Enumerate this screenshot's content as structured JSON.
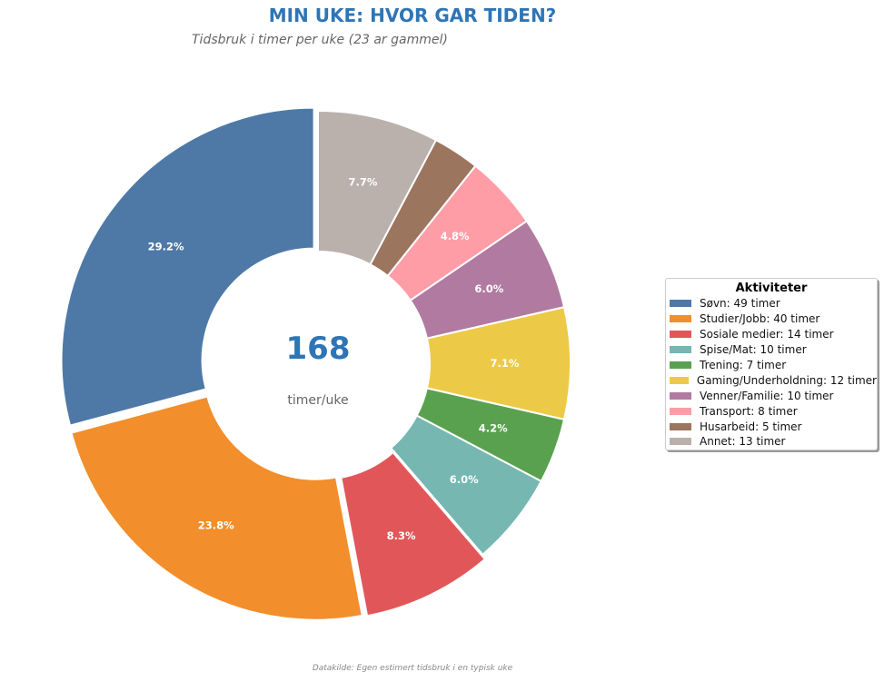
{
  "title": "MIN UKE: HVOR GAR TIDEN?",
  "subtitle": "Tidsbruk i timer per uke (23 ar gammel)",
  "center": {
    "value": "168",
    "label": "timer/uke"
  },
  "footer": "Datakilde: Egen estimert tidsbruk i en typisk uke",
  "legend": {
    "title": "Aktiviteter",
    "items": [
      {
        "label": "Søvn: 49 timer",
        "color": "#4e79a7"
      },
      {
        "label": "Studier/Jobb: 40 timer",
        "color": "#f28e2b"
      },
      {
        "label": "Sosiale medier: 14 timer",
        "color": "#e15759"
      },
      {
        "label": "Spise/Mat: 10 timer",
        "color": "#76b7b2"
      },
      {
        "label": "Trening: 7 timer",
        "color": "#59a14f"
      },
      {
        "label": "Gaming/Underholdning: 12 timer",
        "color": "#edc948"
      },
      {
        "label": "Venner/Familie: 10 timer",
        "color": "#b07aa1"
      },
      {
        "label": "Transport: 8 timer",
        "color": "#ff9da7"
      },
      {
        "label": "Husarbeid: 5 timer",
        "color": "#9c755f"
      },
      {
        "label": "Annet: 13 timer",
        "color": "#bab0ac"
      }
    ]
  },
  "chart_data": {
    "type": "pie",
    "variant": "donut",
    "title": "MIN UKE: HVOR GAR TIDEN?",
    "subtitle": "Tidsbruk i timer per uke (23 ar gammel)",
    "categories": [
      "Søvn",
      "Studier/Jobb",
      "Sosiale medier",
      "Spise/Mat",
      "Trening",
      "Gaming/Underholdning",
      "Venner/Familie",
      "Transport",
      "Husarbeid",
      "Annet"
    ],
    "values": [
      49,
      40,
      14,
      10,
      7,
      12,
      10,
      8,
      5,
      13
    ],
    "percent_labels": [
      "29.2%",
      "23.8%",
      "8.3%",
      "6.0%",
      "4.2%",
      "7.1%",
      "6.0%",
      "4.8%",
      "",
      "7.7%"
    ],
    "colors": [
      "#4e79a7",
      "#f28e2b",
      "#e15759",
      "#76b7b2",
      "#59a14f",
      "#edc948",
      "#b07aa1",
      "#ff9da7",
      "#9c755f",
      "#bab0ac"
    ],
    "explode": [
      0.02,
      0.02,
      0.02,
      0,
      0,
      0,
      0,
      0,
      0,
      0
    ],
    "start_angle": 90,
    "direction": "counterclockwise",
    "total": 168,
    "center_text": "168 timer/uke",
    "legend_title": "Aktiviteter",
    "legend_position": "right",
    "footer": "Datakilde: Egen estimert tidsbruk i en typisk uke"
  }
}
